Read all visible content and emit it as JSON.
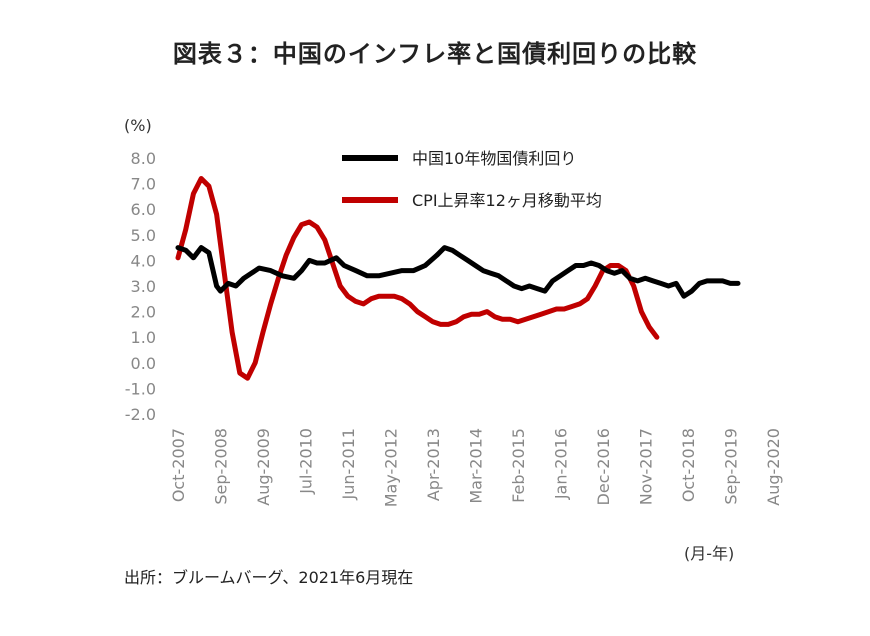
{
  "chart_data": {
    "type": "line",
    "title": "図表３：中国のインフレ率と国債利回りの比較",
    "ylabel": "(%)",
    "xlabel": "(月-年)",
    "source": "出所：ブルームバーグ、2021年6月現在",
    "ylim": [
      -2.0,
      8.0
    ],
    "yticks": [
      "8.0",
      "7.0",
      "6.0",
      "5.0",
      "4.0",
      "3.0",
      "2.0",
      "1.0",
      "0.0",
      "-1.0",
      "-2.0"
    ],
    "xticks": [
      "Oct-2007",
      "Sep-2008",
      "Aug-2009",
      "Jul-2010",
      "Jun-2011",
      "May-2012",
      "Apr-2013",
      "Mar-2014",
      "Feb-2015",
      "Jan-2016",
      "Dec-2016",
      "Nov-2017",
      "Oct-2018",
      "Sep-2019",
      "Aug-2020"
    ],
    "grid": false,
    "legend_position": "top-right",
    "series": [
      {
        "name": "中国10年物国債利回り",
        "color": "#000000",
        "points": [
          [
            0,
            4.5
          ],
          [
            2,
            4.4
          ],
          [
            4,
            4.1
          ],
          [
            6,
            4.5
          ],
          [
            8,
            4.3
          ],
          [
            10,
            3.0
          ],
          [
            11,
            2.8
          ],
          [
            13,
            3.1
          ],
          [
            15,
            3.0
          ],
          [
            17,
            3.3
          ],
          [
            19,
            3.5
          ],
          [
            21,
            3.7
          ],
          [
            24,
            3.6
          ],
          [
            27,
            3.4
          ],
          [
            30,
            3.3
          ],
          [
            32,
            3.6
          ],
          [
            34,
            4.0
          ],
          [
            36,
            3.9
          ],
          [
            38,
            3.9
          ],
          [
            41,
            4.1
          ],
          [
            43,
            3.8
          ],
          [
            46,
            3.6
          ],
          [
            49,
            3.4
          ],
          [
            52,
            3.4
          ],
          [
            55,
            3.5
          ],
          [
            58,
            3.6
          ],
          [
            61,
            3.6
          ],
          [
            64,
            3.8
          ],
          [
            67,
            4.2
          ],
          [
            69,
            4.5
          ],
          [
            71,
            4.4
          ],
          [
            73,
            4.2
          ],
          [
            75,
            4.0
          ],
          [
            77,
            3.8
          ],
          [
            79,
            3.6
          ],
          [
            81,
            3.5
          ],
          [
            83,
            3.4
          ],
          [
            85,
            3.2
          ],
          [
            87,
            3.0
          ],
          [
            89,
            2.9
          ],
          [
            91,
            3.0
          ],
          [
            93,
            2.9
          ],
          [
            95,
            2.8
          ],
          [
            97,
            3.2
          ],
          [
            99,
            3.4
          ],
          [
            101,
            3.6
          ],
          [
            103,
            3.8
          ],
          [
            105,
            3.8
          ],
          [
            107,
            3.9
          ],
          [
            109,
            3.8
          ],
          [
            111,
            3.6
          ],
          [
            113,
            3.5
          ],
          [
            115,
            3.6
          ],
          [
            117,
            3.3
          ],
          [
            119,
            3.2
          ],
          [
            121,
            3.3
          ],
          [
            123,
            3.2
          ],
          [
            125,
            3.1
          ],
          [
            127,
            3.0
          ],
          [
            129,
            3.1
          ],
          [
            131,
            2.6
          ],
          [
            133,
            2.8
          ],
          [
            135,
            3.1
          ],
          [
            137,
            3.2
          ],
          [
            139,
            3.2
          ],
          [
            141,
            3.2
          ],
          [
            143,
            3.1
          ],
          [
            145,
            3.1
          ]
        ]
      },
      {
        "name": "CPI上昇率12ヶ月移動平均",
        "color": "#c00000",
        "points": [
          [
            0,
            4.1
          ],
          [
            2,
            5.2
          ],
          [
            4,
            6.6
          ],
          [
            6,
            7.2
          ],
          [
            8,
            6.9
          ],
          [
            10,
            5.8
          ],
          [
            12,
            3.5
          ],
          [
            14,
            1.2
          ],
          [
            16,
            -0.4
          ],
          [
            18,
            -0.6
          ],
          [
            20,
            0.0
          ],
          [
            22,
            1.2
          ],
          [
            24,
            2.3
          ],
          [
            26,
            3.3
          ],
          [
            28,
            4.2
          ],
          [
            30,
            4.9
          ],
          [
            32,
            5.4
          ],
          [
            34,
            5.5
          ],
          [
            36,
            5.3
          ],
          [
            38,
            4.8
          ],
          [
            40,
            3.9
          ],
          [
            42,
            3.0
          ],
          [
            44,
            2.6
          ],
          [
            46,
            2.4
          ],
          [
            48,
            2.3
          ],
          [
            50,
            2.5
          ],
          [
            52,
            2.6
          ],
          [
            54,
            2.6
          ],
          [
            56,
            2.6
          ],
          [
            58,
            2.5
          ],
          [
            60,
            2.3
          ],
          [
            62,
            2.0
          ],
          [
            64,
            1.8
          ],
          [
            66,
            1.6
          ],
          [
            68,
            1.5
          ],
          [
            70,
            1.5
          ],
          [
            72,
            1.6
          ],
          [
            74,
            1.8
          ],
          [
            76,
            1.9
          ],
          [
            78,
            1.9
          ],
          [
            80,
            2.0
          ],
          [
            82,
            1.8
          ],
          [
            84,
            1.7
          ],
          [
            86,
            1.7
          ],
          [
            88,
            1.6
          ],
          [
            90,
            1.7
          ],
          [
            92,
            1.8
          ],
          [
            94,
            1.9
          ],
          [
            96,
            2.0
          ],
          [
            98,
            2.1
          ],
          [
            100,
            2.1
          ],
          [
            102,
            2.2
          ],
          [
            104,
            2.3
          ],
          [
            106,
            2.5
          ],
          [
            108,
            3.0
          ],
          [
            110,
            3.6
          ],
          [
            112,
            3.8
          ],
          [
            114,
            3.8
          ],
          [
            116,
            3.6
          ],
          [
            118,
            3.0
          ],
          [
            120,
            2.0
          ],
          [
            122,
            1.4
          ],
          [
            124,
            1.0
          ]
        ]
      }
    ]
  }
}
